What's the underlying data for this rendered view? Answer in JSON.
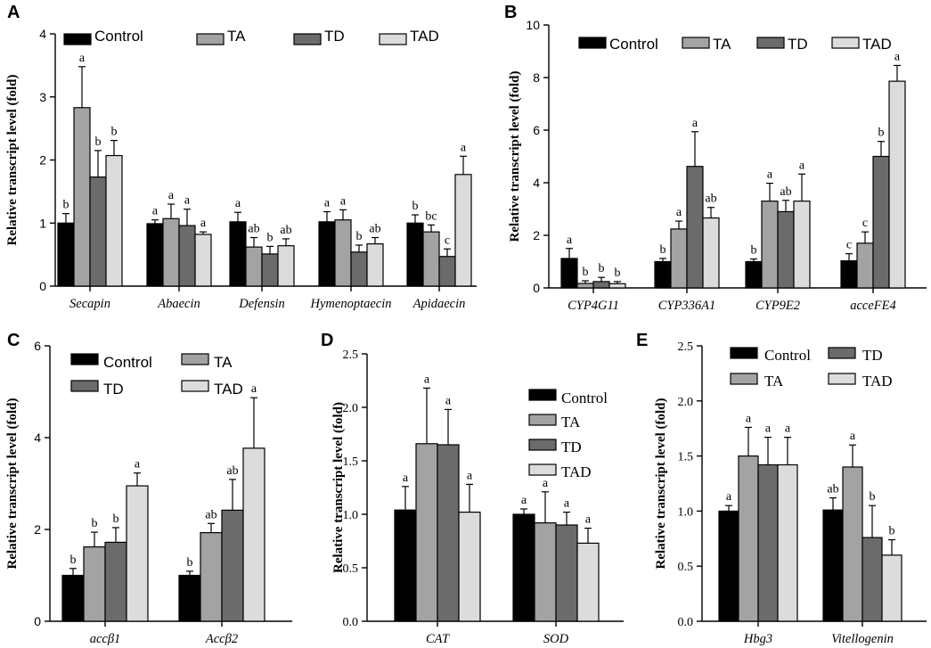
{
  "colors": {
    "Control": "#000000",
    "TA": "#a3a3a3",
    "TD": "#6b6b6b",
    "TAD": "#dcdcdc"
  },
  "chart_data": [
    {
      "panel": "A",
      "type": "bar",
      "ylabel": "Relative transcript level (fold)",
      "ylim": [
        0,
        4
      ],
      "yticks": [
        "0",
        "1",
        "2",
        "3",
        "4"
      ],
      "categories": [
        "Secapin",
        "Abaecin",
        "Defensin",
        "Hymenoptaecin",
        "Apidaecin"
      ],
      "legend_labels": [
        "Control",
        "TA",
        "TD",
        "TAD"
      ],
      "legend_position": "top",
      "series": [
        {
          "name": "Control",
          "values": [
            1.0,
            0.99,
            1.02,
            1.02,
            1.0
          ],
          "errors": [
            0.15,
            0.06,
            0.15,
            0.16,
            0.13
          ],
          "letters": [
            "b",
            "a",
            "a",
            "a",
            "b"
          ]
        },
        {
          "name": "TA",
          "values": [
            2.83,
            1.07,
            0.62,
            1.05,
            0.86
          ],
          "errors": [
            0.65,
            0.23,
            0.15,
            0.16,
            0.11
          ],
          "letters": [
            "a",
            "a",
            "ab",
            "a",
            "bc"
          ]
        },
        {
          "name": "TD",
          "values": [
            1.73,
            0.96,
            0.51,
            0.54,
            0.47
          ],
          "errors": [
            0.42,
            0.26,
            0.12,
            0.11,
            0.12
          ],
          "letters": [
            "b",
            "a",
            "b",
            "b",
            "c"
          ]
        },
        {
          "name": "TAD",
          "values": [
            2.07,
            0.82,
            0.64,
            0.67,
            1.77
          ],
          "errors": [
            0.24,
            0.04,
            0.11,
            0.1,
            0.29
          ],
          "letters": [
            "b",
            "a",
            "ab",
            "ab",
            "a"
          ]
        }
      ]
    },
    {
      "panel": "B",
      "type": "bar",
      "ylabel": "Relative transcript level (fold)",
      "ylim": [
        0,
        10
      ],
      "yticks": [
        "0",
        "2",
        "4",
        "6",
        "8",
        "10"
      ],
      "categories": [
        "CYP4G11",
        "CYP336A1",
        "CYP9E2",
        "acceFE4"
      ],
      "legend_labels": [
        "Control",
        "TA",
        "TD",
        "TAD"
      ],
      "legend_position": "top",
      "series": [
        {
          "name": "Control",
          "values": [
            1.12,
            1.0,
            1.0,
            1.03
          ],
          "errors": [
            0.38,
            0.12,
            0.1,
            0.27
          ],
          "letters": [
            "a",
            "b",
            "b",
            "c"
          ]
        },
        {
          "name": "TA",
          "values": [
            0.17,
            2.24,
            3.3,
            1.7
          ],
          "errors": [
            0.1,
            0.3,
            0.68,
            0.43
          ],
          "letters": [
            "b",
            "a",
            "a",
            "c"
          ]
        },
        {
          "name": "TD",
          "values": [
            0.24,
            4.62,
            2.9,
            5.0
          ],
          "errors": [
            0.16,
            1.32,
            0.43,
            0.57
          ],
          "letters": [
            "b",
            "a",
            "ab",
            "b"
          ]
        },
        {
          "name": "TAD",
          "values": [
            0.16,
            2.66,
            3.3,
            7.86
          ],
          "errors": [
            0.08,
            0.4,
            1.03,
            0.6
          ],
          "letters": [
            "b",
            "ab",
            "a",
            "a"
          ]
        }
      ]
    },
    {
      "panel": "C",
      "type": "bar",
      "ylabel": "Relative transcript level (fold)",
      "ylim": [
        0,
        6
      ],
      "yticks": [
        "0",
        "2",
        "4",
        "6"
      ],
      "categories": [
        "accβ1",
        "Accβ2"
      ],
      "legend_labels": [
        "Control",
        "TA",
        "TD",
        "TAD"
      ],
      "legend_position": "top",
      "series": [
        {
          "name": "Control",
          "values": [
            1.0,
            1.0
          ],
          "errors": [
            0.15,
            0.09
          ],
          "letters": [
            "b",
            "b"
          ]
        },
        {
          "name": "TA",
          "values": [
            1.62,
            1.93
          ],
          "errors": [
            0.32,
            0.2
          ],
          "letters": [
            "b",
            "ab"
          ]
        },
        {
          "name": "TD",
          "values": [
            1.72,
            2.42
          ],
          "errors": [
            0.32,
            0.67
          ],
          "letters": [
            "b",
            "ab"
          ]
        },
        {
          "name": "TAD",
          "values": [
            2.95,
            3.77
          ],
          "errors": [
            0.28,
            1.1
          ],
          "letters": [
            "a",
            "a"
          ]
        }
      ]
    },
    {
      "panel": "D",
      "type": "bar",
      "ylabel": "Relative transcript level (fold)",
      "ylim": [
        0,
        2.5
      ],
      "yticks": [
        "0.0",
        "0.5",
        "1.0",
        "1.5",
        "2.0",
        "2.5"
      ],
      "categories": [
        "CAT",
        "SOD"
      ],
      "legend_labels": [
        "Control",
        "TA",
        "TD",
        "TAD"
      ],
      "legend_position": "top-right",
      "series": [
        {
          "name": "Control",
          "values": [
            1.04,
            1.0
          ],
          "errors": [
            0.22,
            0.05
          ],
          "letters": [
            "a",
            "a"
          ]
        },
        {
          "name": "TA",
          "values": [
            1.66,
            0.92
          ],
          "errors": [
            0.52,
            0.29
          ],
          "letters": [
            "a",
            "a"
          ]
        },
        {
          "name": "TD",
          "values": [
            1.65,
            0.9
          ],
          "errors": [
            0.33,
            0.12
          ],
          "letters": [
            "a",
            "a"
          ]
        },
        {
          "name": "TAD",
          "values": [
            1.02,
            0.73
          ],
          "errors": [
            0.26,
            0.14
          ],
          "letters": [
            "a",
            "a"
          ]
        }
      ]
    },
    {
      "panel": "E",
      "type": "bar",
      "ylabel": "Relative transcript level (fold)",
      "ylim": [
        0,
        2.5
      ],
      "yticks": [
        "0.0",
        "0.5",
        "1.0",
        "1.5",
        "2.0",
        "2.5"
      ],
      "categories": [
        "Hbg3",
        "Vitellogenin"
      ],
      "legend_labels": [
        "Control",
        "TD",
        "TA",
        "TAD"
      ],
      "legend_position": "top",
      "series": [
        {
          "name": "Control",
          "values": [
            1.0,
            1.01
          ],
          "errors": [
            0.05,
            0.11
          ],
          "letters": [
            "a",
            "ab"
          ]
        },
        {
          "name": "TA",
          "values": [
            1.5,
            1.4
          ],
          "errors": [
            0.26,
            0.2
          ],
          "letters": [
            "a",
            "a"
          ]
        },
        {
          "name": "TD",
          "values": [
            1.42,
            0.76
          ],
          "errors": [
            0.25,
            0.29
          ],
          "letters": [
            "a",
            "b"
          ]
        },
        {
          "name": "TAD",
          "values": [
            1.42,
            0.6
          ],
          "errors": [
            0.25,
            0.14
          ],
          "letters": [
            "a",
            "b"
          ]
        }
      ]
    }
  ]
}
